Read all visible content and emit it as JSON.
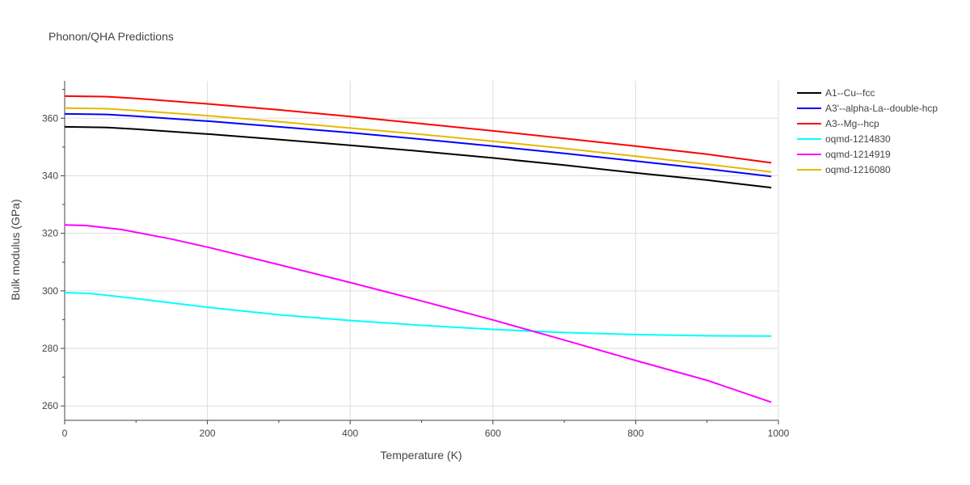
{
  "chart_data": {
    "type": "line",
    "title": "Phonon/QHA Predictions",
    "xlabel": "Temperature (K)",
    "ylabel": "Bulk modulus (GPa)",
    "xlim": [
      0,
      1000
    ],
    "ylim": [
      255,
      373
    ],
    "xticks": [
      0,
      200,
      400,
      600,
      800,
      1000
    ],
    "yticks": [
      260,
      280,
      300,
      320,
      340,
      360
    ],
    "grid": true,
    "legend_position": "top-right",
    "series": [
      {
        "name": "A1--Cu--fcc",
        "color": "#000000",
        "x": [
          0,
          60,
          100,
          200,
          300,
          400,
          500,
          600,
          700,
          800,
          900,
          990
        ],
        "y": [
          357.0,
          356.8,
          356.2,
          354.5,
          352.6,
          350.6,
          348.5,
          346.2,
          343.7,
          341.0,
          338.5,
          335.9
        ]
      },
      {
        "name": "A3'--alpha-La--double-hcp",
        "color": "#0000ff",
        "x": [
          0,
          60,
          100,
          200,
          300,
          400,
          500,
          600,
          700,
          800,
          900,
          990
        ],
        "y": [
          361.5,
          361.3,
          360.7,
          359.0,
          357.0,
          355.0,
          352.7,
          350.3,
          347.8,
          345.1,
          342.4,
          339.8
        ]
      },
      {
        "name": "A3--Mg--hcp",
        "color": "#ff0000",
        "x": [
          0,
          60,
          100,
          200,
          300,
          400,
          500,
          600,
          700,
          800,
          900,
          990
        ],
        "y": [
          367.7,
          367.5,
          366.9,
          365.0,
          362.9,
          360.6,
          358.1,
          355.6,
          353.0,
          350.3,
          347.5,
          344.5
        ]
      },
      {
        "name": "oqmd-1214830",
        "color": "#00ffff",
        "x": [
          0,
          35,
          100,
          200,
          300,
          400,
          500,
          600,
          700,
          800,
          900,
          990
        ],
        "y": [
          299.4,
          299.1,
          297.3,
          294.3,
          291.7,
          289.7,
          288.0,
          286.6,
          285.5,
          284.8,
          284.4,
          284.3
        ]
      },
      {
        "name": "oqmd-1214919",
        "color": "#ff00ff",
        "x": [
          0,
          30,
          80,
          150,
          200,
          300,
          400,
          500,
          600,
          700,
          800,
          900,
          990
        ],
        "y": [
          322.9,
          322.7,
          321.3,
          318.0,
          315.2,
          309.1,
          302.9,
          296.5,
          289.9,
          282.9,
          275.8,
          268.9,
          261.3
        ]
      },
      {
        "name": "oqmd-1216080",
        "color": "#e6b800",
        "x": [
          0,
          60,
          100,
          200,
          300,
          400,
          500,
          600,
          700,
          800,
          900,
          990
        ],
        "y": [
          363.5,
          363.3,
          362.7,
          360.9,
          358.8,
          356.6,
          354.4,
          352.0,
          349.5,
          346.8,
          344.0,
          341.3
        ]
      }
    ]
  }
}
